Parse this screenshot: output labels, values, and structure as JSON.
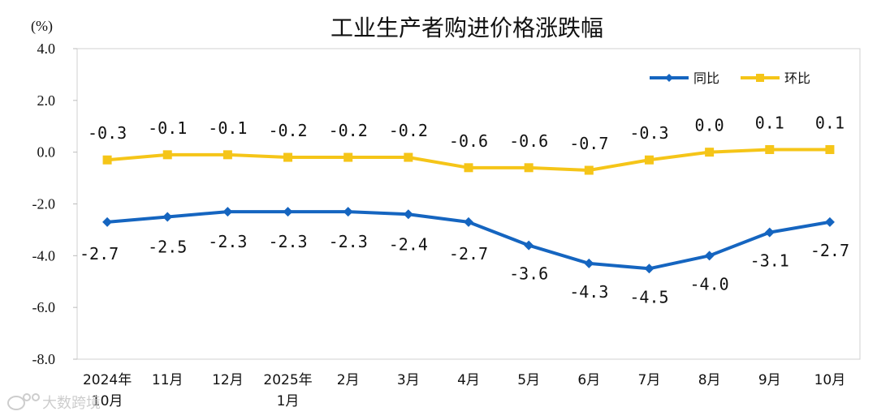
{
  "chart_data": {
    "type": "line",
    "title": "工业生产者购进价格涨跌幅",
    "unit_label": "(%)",
    "categories": [
      [
        "2024年",
        "10月"
      ],
      [
        "11月"
      ],
      [
        "12月"
      ],
      [
        "2025年",
        "1月"
      ],
      [
        "2月"
      ],
      [
        "3月"
      ],
      [
        "4月"
      ],
      [
        "5月"
      ],
      [
        "6月"
      ],
      [
        "7月"
      ],
      [
        "8月"
      ],
      [
        "9月"
      ],
      [
        "10月"
      ]
    ],
    "ylim": [
      -8.0,
      4.0
    ],
    "yticks": [
      4.0,
      2.0,
      0.0,
      -2.0,
      -4.0,
      -6.0,
      -8.0
    ],
    "ytick_labels": [
      "4.0",
      "2.0",
      "0.0",
      "-2.0",
      "-4.0",
      "-6.0",
      "-8.0"
    ],
    "grid": false,
    "legend_position": "top-right",
    "series": [
      {
        "name": "同比",
        "color": "#1565C0",
        "marker": "diamond",
        "values": [
          -2.7,
          -2.5,
          -2.3,
          -2.3,
          -2.3,
          -2.4,
          -2.7,
          -3.6,
          -4.3,
          -4.5,
          -4.0,
          -3.1,
          -2.7
        ],
        "labels": [
          "-2.7",
          "-2.5",
          "-2.3",
          "-2.3",
          "-2.3",
          "-2.4",
          "-2.7",
          "-3.6",
          "-4.3",
          "-4.5",
          "-4.0",
          "-3.1",
          "-2.7"
        ]
      },
      {
        "name": "环比",
        "color": "#F5C518",
        "marker": "square",
        "values": [
          -0.3,
          -0.1,
          -0.1,
          -0.2,
          -0.2,
          -0.2,
          -0.6,
          -0.6,
          -0.7,
          -0.3,
          0.0,
          0.1,
          0.1
        ],
        "labels": [
          "-0.3",
          "-0.1",
          "-0.1",
          "-0.2",
          "-0.2",
          "-0.2",
          "-0.6",
          "-0.6",
          "-0.7",
          "-0.3",
          "0.0",
          "0.1",
          "0.1"
        ]
      }
    ]
  },
  "watermark": {
    "text": "大数跨境",
    "icon": "weibo-icon"
  }
}
